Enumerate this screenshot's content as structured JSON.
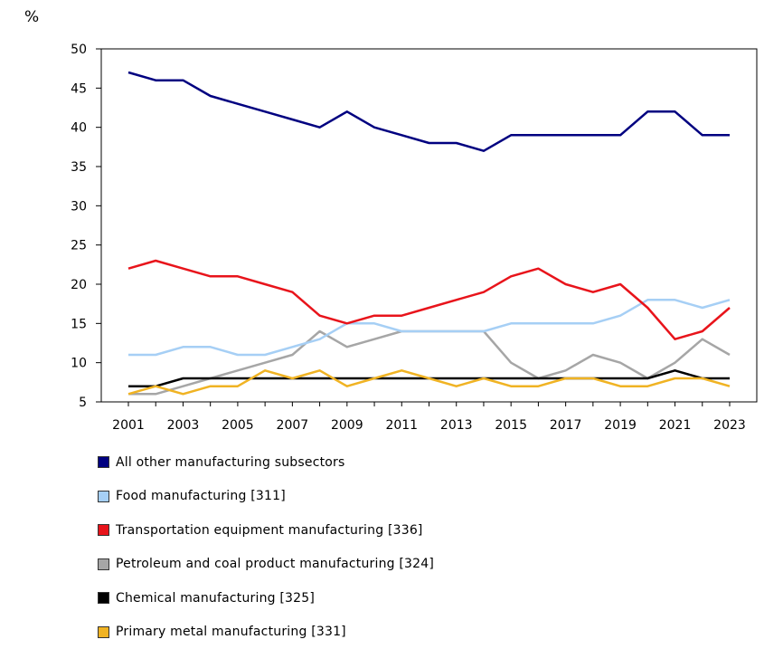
{
  "chart_data": {
    "type": "line",
    "ylabel": "%",
    "ylim": [
      5,
      50
    ],
    "yticks": [
      5,
      10,
      15,
      20,
      25,
      30,
      35,
      40,
      45,
      50
    ],
    "x": [
      2001,
      2002,
      2003,
      2004,
      2005,
      2006,
      2007,
      2008,
      2009,
      2010,
      2011,
      2012,
      2013,
      2014,
      2015,
      2016,
      2017,
      2018,
      2019,
      2020,
      2021,
      2022,
      2023
    ],
    "xticks": [
      "2001",
      "2003",
      "2005",
      "2007",
      "2009",
      "2011",
      "2013",
      "2015",
      "2017",
      "2019",
      "2021",
      "2023"
    ],
    "grid": false,
    "legend_position": "bottom",
    "series": [
      {
        "name": "All other manufacturing subsectors",
        "color": "#000080",
        "values": [
          47,
          46,
          46,
          44,
          43,
          42,
          41,
          40,
          42,
          40,
          39,
          38,
          38,
          37,
          39,
          39,
          39,
          39,
          39,
          42,
          42,
          39,
          39
        ]
      },
      {
        "name": "Food manufacturing [311]",
        "color": "#a6cff5",
        "values": [
          11,
          11,
          12,
          12,
          11,
          11,
          12,
          13,
          15,
          15,
          14,
          14,
          14,
          14,
          15,
          15,
          15,
          15,
          16,
          18,
          18,
          17,
          18
        ]
      },
      {
        "name": "Transportation equipment manufacturing [336]",
        "color": "#e8141b",
        "values": [
          22,
          23,
          22,
          21,
          21,
          20,
          19,
          16,
          15,
          16,
          16,
          17,
          18,
          19,
          21,
          22,
          20,
          19,
          20,
          17,
          13,
          14,
          17
        ]
      },
      {
        "name": "Petroleum and coal product manufacturing [324]",
        "color": "#a6a6a6",
        "values": [
          6,
          6,
          7,
          8,
          9,
          10,
          11,
          14,
          12,
          13,
          14,
          14,
          14,
          14,
          10,
          8,
          9,
          11,
          10,
          8,
          10,
          13,
          11
        ]
      },
      {
        "name": "Chemical manufacturing [325]",
        "color": "#000000",
        "values": [
          7,
          7,
          8,
          8,
          8,
          8,
          8,
          8,
          8,
          8,
          8,
          8,
          8,
          8,
          8,
          8,
          8,
          8,
          8,
          8,
          9,
          8,
          8
        ]
      },
      {
        "name": "Primary metal manufacturing [331]",
        "color": "#f0b323",
        "values": [
          6,
          7,
          6,
          7,
          7,
          9,
          8,
          9,
          7,
          8,
          9,
          8,
          7,
          8,
          7,
          7,
          8,
          8,
          7,
          7,
          8,
          8,
          7
        ]
      }
    ]
  }
}
